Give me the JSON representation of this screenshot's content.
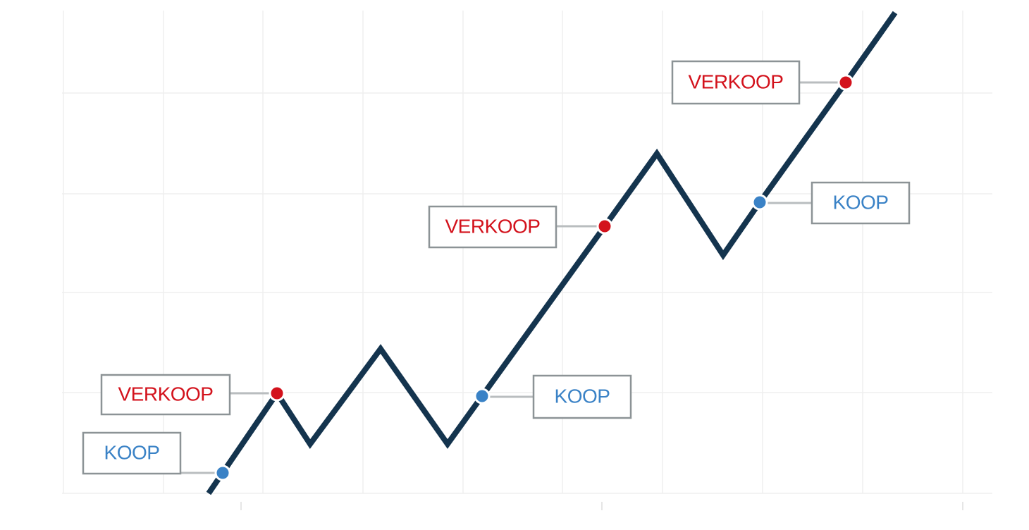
{
  "annotations": [
    {
      "label": "KOOP"
    },
    {
      "label": "VERKOOP"
    },
    {
      "label": "KOOP"
    },
    {
      "label": "VERKOOP"
    },
    {
      "label": "KOOP"
    },
    {
      "label": "VERKOOP"
    }
  ]
}
